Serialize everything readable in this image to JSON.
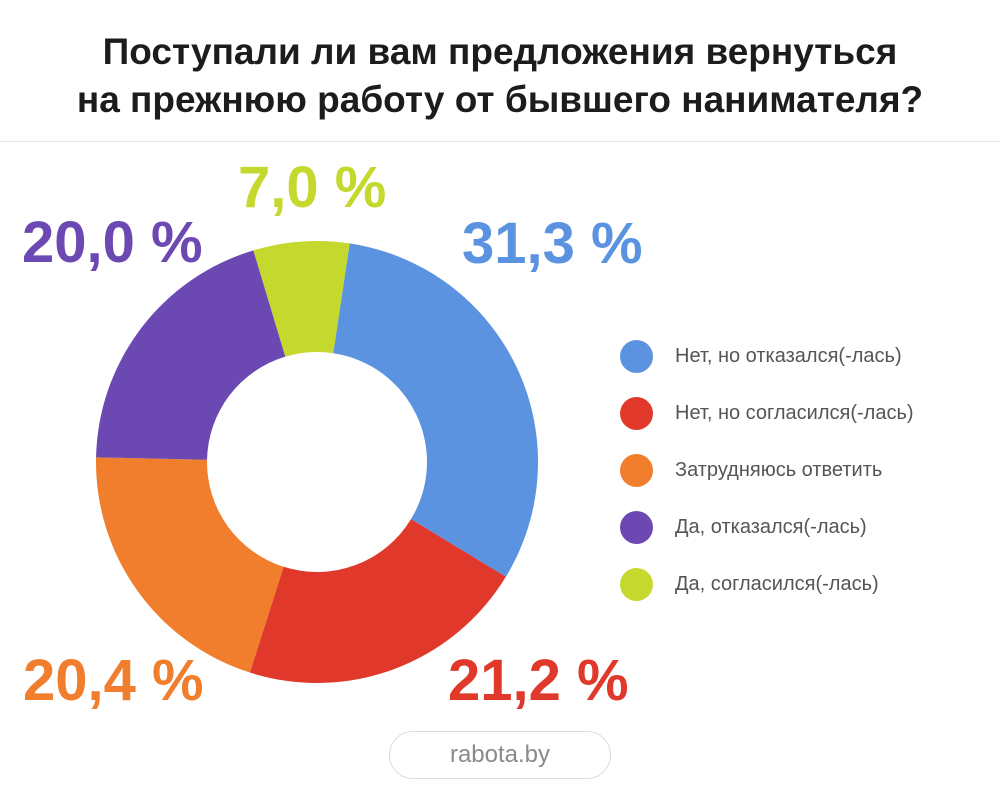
{
  "title": {
    "line1": "Поступали ли вам предложения вернуться",
    "line2": "на прежнюю работу от бывшего нанимателя?"
  },
  "source": "rabota.by",
  "colors": {
    "blue": "#5b93e1",
    "red": "#e0382a",
    "orange": "#f07e2d",
    "purple": "#6c48b2",
    "lime": "#c5d82e"
  },
  "chart_data": {
    "type": "pie",
    "variant": "donut",
    "title": "Поступали ли вам предложения вернуться на прежнюю работу от бывшего нанимателя?",
    "unit": "%",
    "legend_position": "right",
    "slices": [
      {
        "label": "Нет, но отказался(-лась)",
        "value": 31.3,
        "display": "31,3 %",
        "color": "#5b93e1"
      },
      {
        "label": "Нет, но согласился(-лась)",
        "value": 21.2,
        "display": "21,2 %",
        "color": "#e0382a"
      },
      {
        "label": "Затрудняюсь ответить",
        "value": 20.4,
        "display": "20,4 %",
        "color": "#f07e2d"
      },
      {
        "label": "Да, отказался(-лась)",
        "value": 20.0,
        "display": "20,0 %",
        "color": "#6c48b2"
      },
      {
        "label": "Да, согласился(-лась)",
        "value": 7.0,
        "display": "7,0 %",
        "color": "#c5d82e"
      }
    ]
  }
}
